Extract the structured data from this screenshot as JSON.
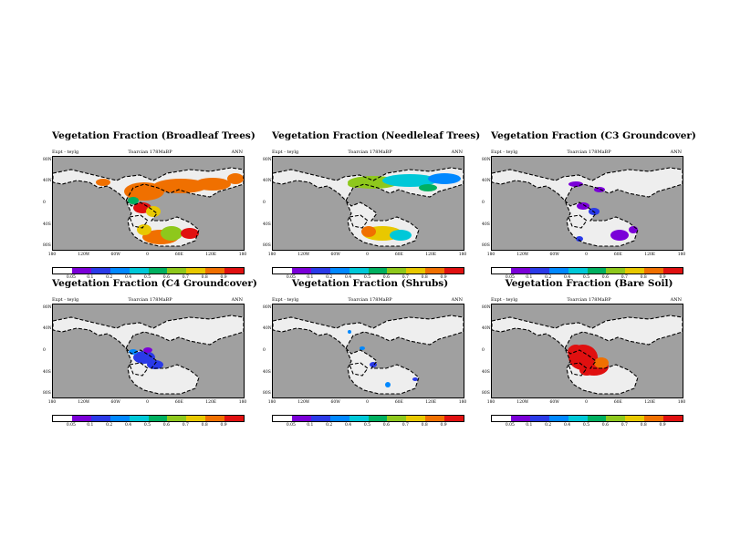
{
  "panels": [
    {
      "title": "Vegetation Fraction (Broadleaf Trees)",
      "expt": "Expt - teylg",
      "period": "Toarcian 178MaBP",
      "season": "ANN",
      "pft": "broadleaf"
    },
    {
      "title": "Vegetation Fraction (Needleleaf Trees)",
      "expt": "Expt - teylg",
      "period": "Toarcian 178MaBP",
      "season": "ANN",
      "pft": "needleleaf"
    },
    {
      "title": "Vegetation Fraction (C3 Groundcover)",
      "expt": "Expt - teylg",
      "period": "Toarcian 178MaBP",
      "season": "ANN",
      "pft": "c3"
    },
    {
      "title": "Vegetation Fraction (C4 Groundcover)",
      "expt": "Expt - teylg",
      "period": "Toarcian 178MaBP",
      "season": "ANN",
      "pft": "c4"
    },
    {
      "title": "Vegetation Fraction (Shrubs)",
      "expt": "Expt - teylg",
      "period": "Toarcian 178MaBP",
      "season": "ANN",
      "pft": "shrubs"
    },
    {
      "title": "Vegetation Fraction (Bare Soil)",
      "expt": "Expt - teylg",
      "period": "Toarcian 178MaBP",
      "season": "ANN",
      "pft": "baresoil"
    }
  ],
  "axes": {
    "lat_ticks": [
      "80N",
      "40N",
      "0",
      "40S",
      "80S"
    ],
    "lon_ticks": [
      "180",
      "120W",
      "60W",
      "0",
      "60E",
      "120E",
      "180"
    ]
  },
  "colorbar": {
    "levels": [
      "0.05",
      "0.1",
      "0.2",
      "0.4",
      "0.5",
      "0.6",
      "0.7",
      "0.8",
      "0.9"
    ],
    "colors": [
      "#ffffff",
      "#7a00d8",
      "#2a3ae8",
      "#0088ff",
      "#00c8d8",
      "#00b060",
      "#8ec81c",
      "#e8c800",
      "#f07000",
      "#e01010"
    ]
  },
  "colors": {
    "ocean": "#a0a0a0",
    "land": "#eeeeee",
    "coast": "#000000"
  }
}
